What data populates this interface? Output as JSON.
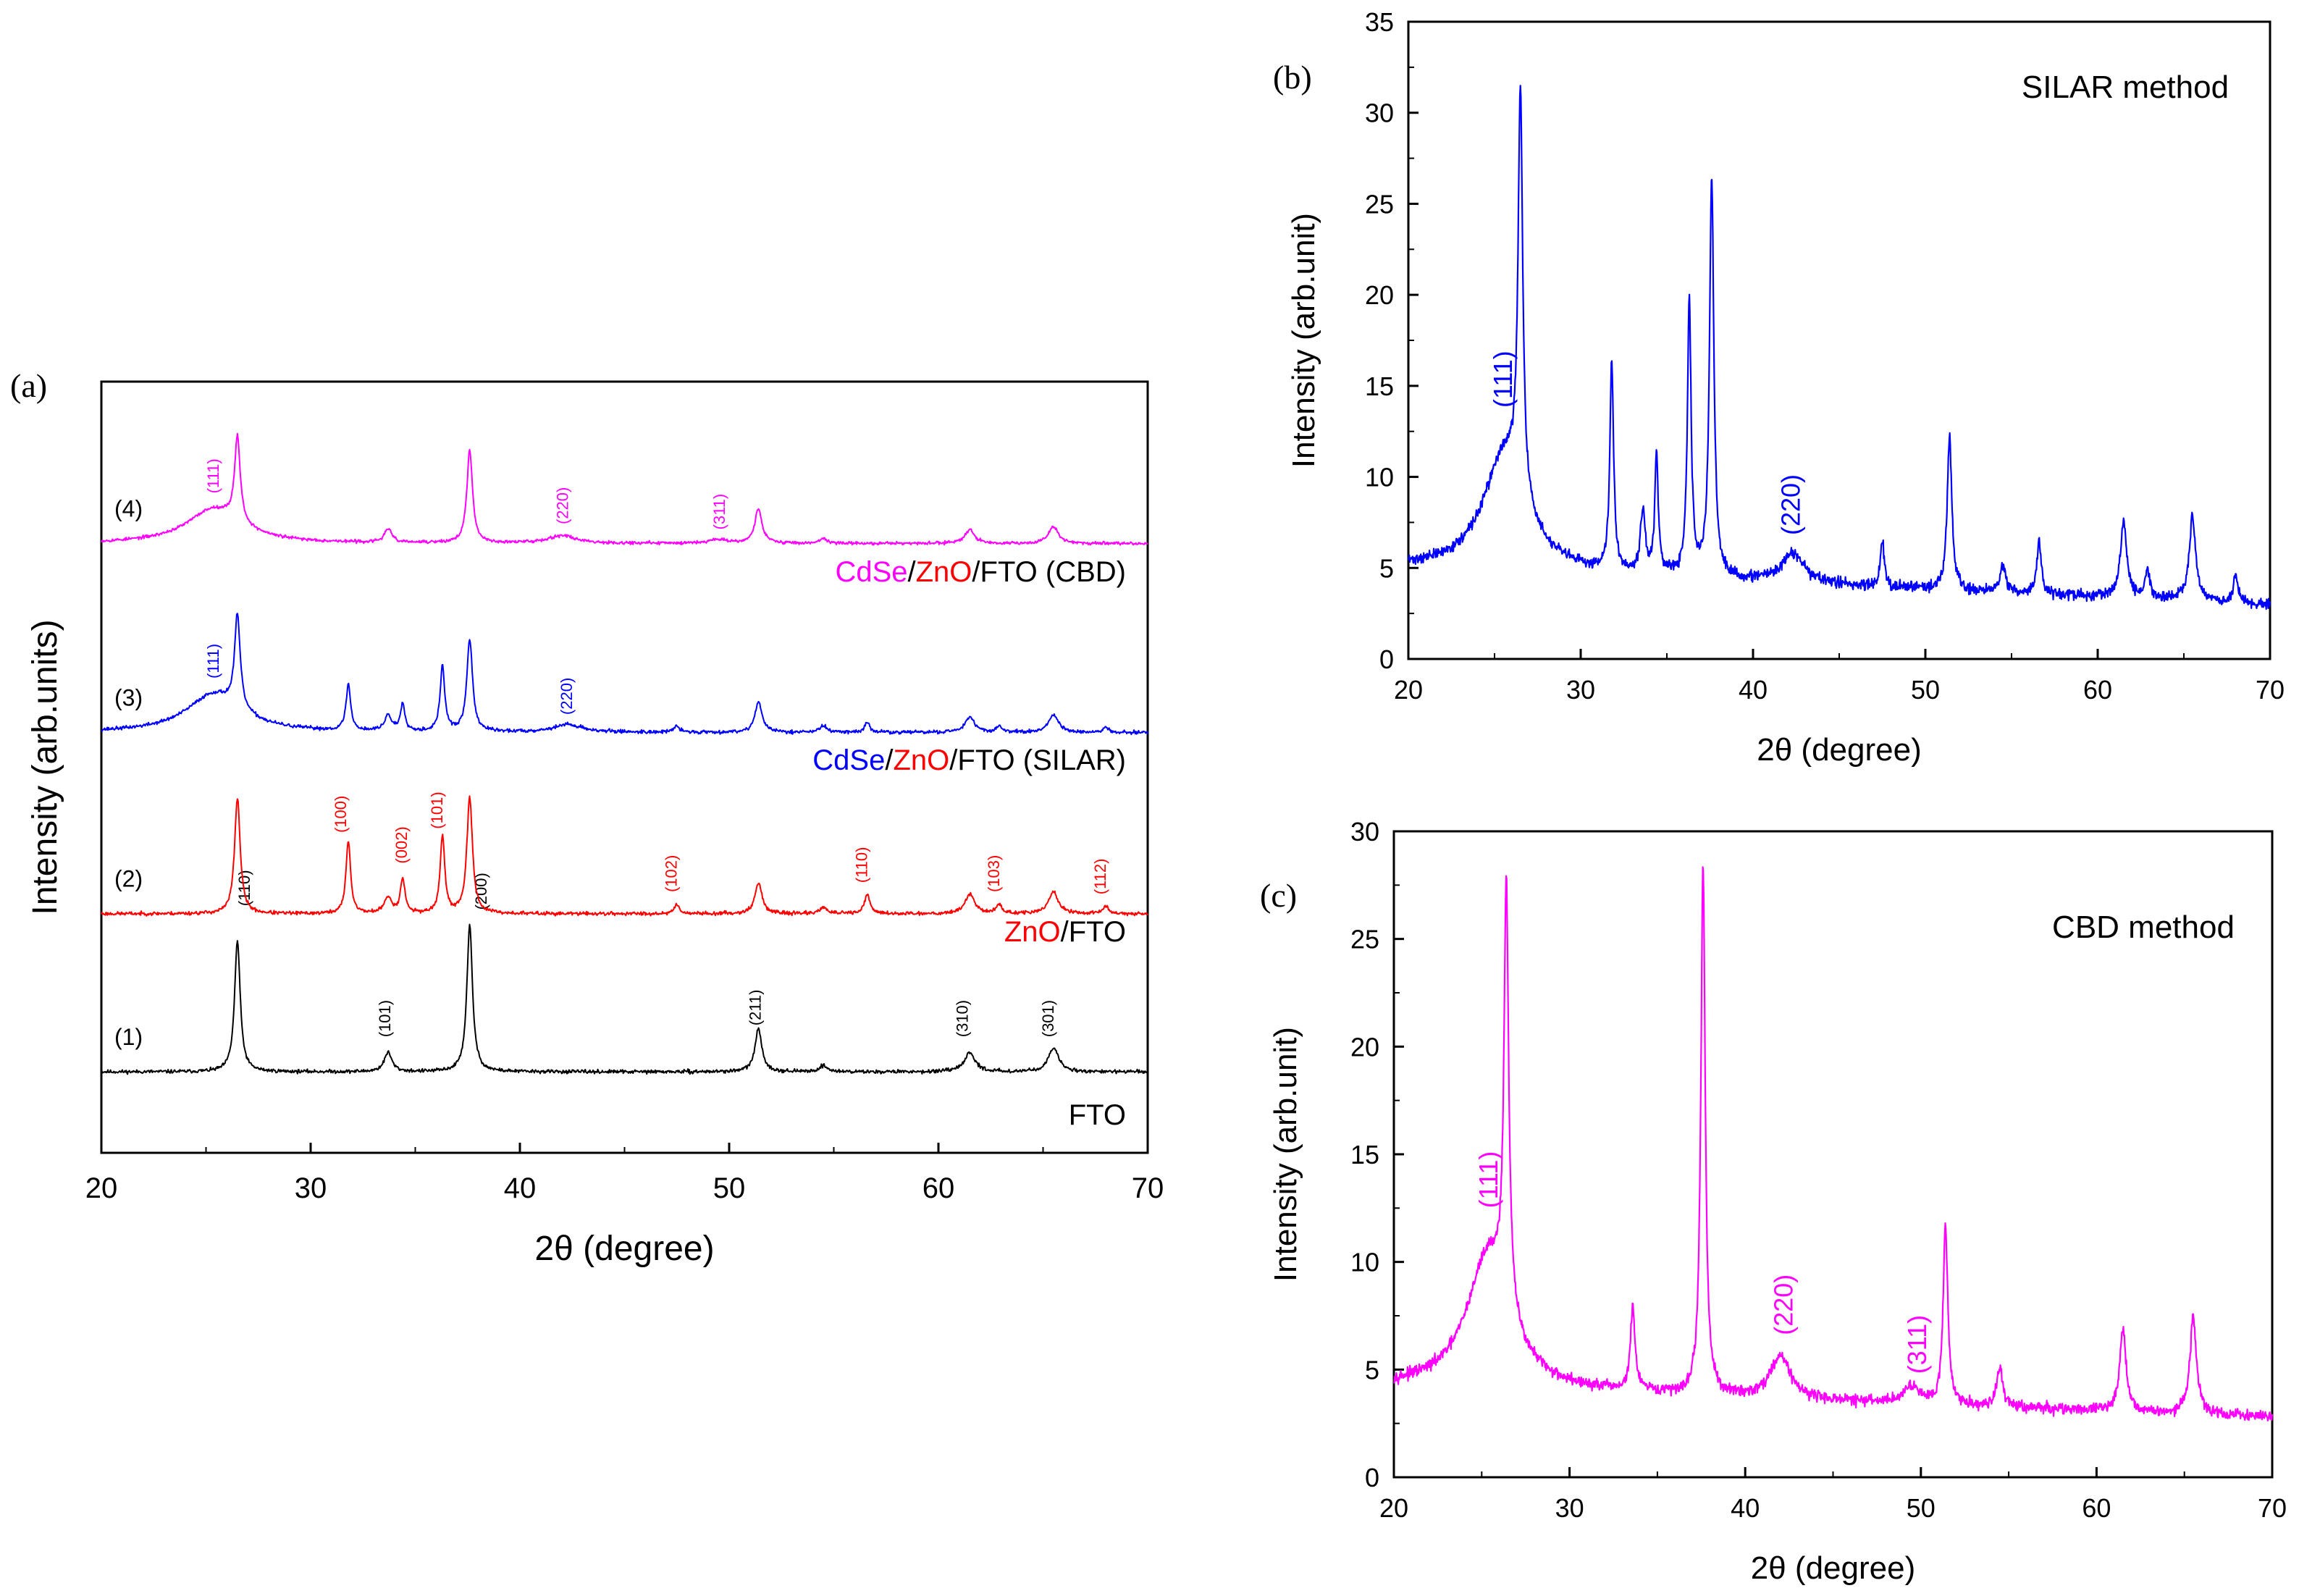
{
  "colors": {
    "fto": "#000000",
    "zno": "#ff0000",
    "silar": "#0000ff",
    "cbd": "#ff00ff",
    "axis": "#000000"
  },
  "chart_data": [
    {
      "id": "a",
      "panel_label": "(a)",
      "type": "line",
      "title": "",
      "xlabel": "2θ (degree)",
      "ylabel": "Intensity (arb.units)",
      "xlim": [
        20,
        70
      ],
      "x_ticks": [
        20,
        30,
        40,
        50,
        60,
        70
      ],
      "y_ticks_shown": false,
      "y_units": "normalized stacked intensity (0 = bottom axis, 1 = top axis)",
      "grid": false,
      "series": [
        {
          "id": "fto",
          "index_label": "(1)",
          "name": "FTO",
          "color_key": "fto",
          "baseline": 0.105,
          "noise": 0.0035,
          "seed": 11,
          "legend": [
            {
              "text": "FTO",
              "color_key": "fto"
            }
          ],
          "peaks": [
            {
              "x": 26.5,
              "h": 0.17,
              "w": 0.16,
              "label": "(110)",
              "label_x": 27.1,
              "label_base": 0.32
            },
            {
              "x": 33.7,
              "h": 0.025,
              "w": 0.22,
              "label": "(101)",
              "label_x": 33.8,
              "label_base": 0.15
            },
            {
              "x": 37.6,
              "h": 0.19,
              "w": 0.16,
              "label": "(200)",
              "label_x": 38.4,
              "label_base": 0.315
            },
            {
              "x": 51.4,
              "h": 0.055,
              "w": 0.2,
              "label": "(211)",
              "label_x": 51.5,
              "label_base": 0.165
            },
            {
              "x": 54.5,
              "h": 0.008,
              "w": 0.22
            },
            {
              "x": 61.5,
              "h": 0.025,
              "w": 0.3,
              "label": "(310)",
              "label_x": 61.4,
              "label_base": 0.15
            },
            {
              "x": 65.5,
              "h": 0.03,
              "w": 0.3,
              "label": "(301)",
              "label_x": 65.5,
              "label_base": 0.15
            }
          ]
        },
        {
          "id": "zno",
          "index_label": "(2)",
          "name": "ZnO/FTO",
          "color_key": "zno",
          "baseline": 0.31,
          "noise": 0.0035,
          "seed": 23,
          "legend": [
            {
              "text": "ZnO",
              "color_key": "zno"
            },
            {
              "text": "/FTO",
              "color_key": "fto"
            }
          ],
          "peaks": [
            {
              "x": 26.5,
              "h": 0.15,
              "w": 0.16
            },
            {
              "x": 31.8,
              "h": 0.095,
              "w": 0.13,
              "label": "(100)",
              "label_x": 31.7,
              "label_base": 0.415
            },
            {
              "x": 33.7,
              "h": 0.02,
              "w": 0.22
            },
            {
              "x": 34.4,
              "h": 0.045,
              "w": 0.13,
              "label": "(002)",
              "label_x": 34.6,
              "label_base": 0.375
            },
            {
              "x": 36.3,
              "h": 0.1,
              "w": 0.13,
              "label": "(101)",
              "label_x": 36.3,
              "label_base": 0.42
            },
            {
              "x": 37.6,
              "h": 0.15,
              "w": 0.16
            },
            {
              "x": 47.5,
              "h": 0.012,
              "w": 0.15,
              "label": "(102)",
              "label_x": 47.5,
              "label_base": 0.338
            },
            {
              "x": 51.4,
              "h": 0.04,
              "w": 0.2
            },
            {
              "x": 54.5,
              "h": 0.008,
              "w": 0.22
            },
            {
              "x": 56.6,
              "h": 0.025,
              "w": 0.15,
              "label": "(110)",
              "label_x": 56.6,
              "label_base": 0.35
            },
            {
              "x": 61.5,
              "h": 0.025,
              "w": 0.28
            },
            {
              "x": 62.9,
              "h": 0.012,
              "w": 0.15,
              "label": "(103)",
              "label_x": 62.9,
              "label_base": 0.338
            },
            {
              "x": 65.5,
              "h": 0.028,
              "w": 0.28
            },
            {
              "x": 68.0,
              "h": 0.01,
              "w": 0.15,
              "label": "(112)",
              "label_x": 68.0,
              "label_base": 0.335
            }
          ]
        },
        {
          "id": "silar",
          "index_label": "(3)",
          "name": "CdSe/ZnO/FTO (SILAR)",
          "color_key": "silar",
          "baseline": 0.545,
          "noise": 0.0035,
          "seed": 37,
          "legend": [
            {
              "text": "CdSe",
              "color_key": "silar"
            },
            {
              "text": "/",
              "color_key": "fto"
            },
            {
              "text": "ZnO",
              "color_key": "zno"
            },
            {
              "text": "/FTO (SILAR)",
              "color_key": "fto"
            }
          ],
          "peaks": [
            {
              "x": 25.4,
              "h": 0.05,
              "w": 1.6,
              "label": "(111)",
              "label_x": 25.6,
              "label_base": 0.615
            },
            {
              "x": 26.5,
              "h": 0.12,
              "w": 0.16
            },
            {
              "x": 31.8,
              "h": 0.06,
              "w": 0.13
            },
            {
              "x": 33.7,
              "h": 0.02,
              "w": 0.2
            },
            {
              "x": 34.4,
              "h": 0.035,
              "w": 0.13
            },
            {
              "x": 36.3,
              "h": 0.085,
              "w": 0.13
            },
            {
              "x": 37.6,
              "h": 0.12,
              "w": 0.16
            },
            {
              "x": 42.3,
              "h": 0.01,
              "w": 0.8,
              "label": "(220)",
              "label_x": 42.5,
              "label_base": 0.568
            },
            {
              "x": 47.5,
              "h": 0.008,
              "w": 0.15
            },
            {
              "x": 51.4,
              "h": 0.04,
              "w": 0.2
            },
            {
              "x": 54.5,
              "h": 0.008,
              "w": 0.22
            },
            {
              "x": 56.6,
              "h": 0.012,
              "w": 0.15
            },
            {
              "x": 61.5,
              "h": 0.02,
              "w": 0.28
            },
            {
              "x": 62.9,
              "h": 0.008,
              "w": 0.15
            },
            {
              "x": 65.5,
              "h": 0.022,
              "w": 0.28
            },
            {
              "x": 68.0,
              "h": 0.006,
              "w": 0.15
            }
          ]
        },
        {
          "id": "cbd",
          "index_label": "(4)",
          "name": "CdSe/ZnO/FTO (CBD)",
          "color_key": "cbd",
          "baseline": 0.79,
          "noise": 0.003,
          "seed": 53,
          "legend": [
            {
              "text": "CdSe",
              "color_key": "cbd"
            },
            {
              "text": "/",
              "color_key": "fto"
            },
            {
              "text": "ZnO",
              "color_key": "zno"
            },
            {
              "text": "/FTO (CBD)",
              "color_key": "fto"
            }
          ],
          "peaks": [
            {
              "x": 25.4,
              "h": 0.045,
              "w": 1.6,
              "label": "(111)",
              "label_x": 25.6,
              "label_base": 0.855
            },
            {
              "x": 26.5,
              "h": 0.11,
              "w": 0.16
            },
            {
              "x": 33.7,
              "h": 0.018,
              "w": 0.2
            },
            {
              "x": 37.6,
              "h": 0.12,
              "w": 0.16
            },
            {
              "x": 42.0,
              "h": 0.01,
              "w": 0.8,
              "label": "(220)",
              "label_x": 42.3,
              "label_base": 0.815
            },
            {
              "x": 49.5,
              "h": 0.005,
              "w": 0.6,
              "label": "(311)",
              "label_x": 49.8,
              "label_base": 0.808
            },
            {
              "x": 51.4,
              "h": 0.045,
              "w": 0.2
            },
            {
              "x": 54.5,
              "h": 0.006,
              "w": 0.22
            },
            {
              "x": 61.5,
              "h": 0.018,
              "w": 0.28
            },
            {
              "x": 65.5,
              "h": 0.022,
              "w": 0.28
            }
          ]
        }
      ]
    },
    {
      "id": "b",
      "panel_label": "(b)",
      "type": "line",
      "title": "SILAR method",
      "xlabel": "2θ (degree)",
      "ylabel": "Intensity (arb.unit)",
      "xlim": [
        20,
        70
      ],
      "ylim": [
        0,
        35
      ],
      "x_ticks": [
        20,
        30,
        40,
        50,
        60,
        70
      ],
      "y_ticks": [
        0,
        5,
        10,
        15,
        20,
        25,
        30,
        35
      ],
      "grid": false,
      "series": [
        {
          "id": "silar-pattern",
          "name": "CdSe/ZnO/FTO (SILAR)",
          "color_key": "silar",
          "baseline": 5.0,
          "decay": 2.0,
          "noise": 0.45,
          "seed": 71,
          "peaks": [
            {
              "x": 25.6,
              "h": 6.5,
              "w": 1.5,
              "label": "(111)",
              "label_x": 25.5,
              "label_y": 13.8
            },
            {
              "x": 26.5,
              "h": 22.0,
              "w": 0.16
            },
            {
              "x": 31.8,
              "h": 11.5,
              "w": 0.13
            },
            {
              "x": 33.6,
              "h": 3.5,
              "w": 0.16
            },
            {
              "x": 34.4,
              "h": 6.5,
              "w": 0.12
            },
            {
              "x": 36.3,
              "h": 15.0,
              "w": 0.13
            },
            {
              "x": 37.6,
              "h": 22.0,
              "w": 0.15
            },
            {
              "x": 42.3,
              "h": 1.6,
              "w": 0.8,
              "label": "(220)",
              "label_x": 42.2,
              "label_y": 6.8
            },
            {
              "x": 47.5,
              "h": 2.5,
              "w": 0.14
            },
            {
              "x": 51.4,
              "h": 8.5,
              "w": 0.16
            },
            {
              "x": 54.5,
              "h": 1.5,
              "w": 0.2
            },
            {
              "x": 56.6,
              "h": 3.0,
              "w": 0.15
            },
            {
              "x": 61.5,
              "h": 4.2,
              "w": 0.22
            },
            {
              "x": 62.9,
              "h": 1.5,
              "w": 0.15
            },
            {
              "x": 65.5,
              "h": 4.6,
              "w": 0.22
            },
            {
              "x": 68.0,
              "h": 1.5,
              "w": 0.15
            }
          ]
        }
      ]
    },
    {
      "id": "c",
      "panel_label": "(c)",
      "type": "line",
      "title": "CBD method",
      "xlabel": "2θ (degree)",
      "ylabel": "Intensity (arb.unit)",
      "xlim": [
        20,
        70
      ],
      "ylim": [
        0,
        30
      ],
      "x_ticks": [
        20,
        30,
        40,
        50,
        60,
        70
      ],
      "y_ticks": [
        0,
        5,
        10,
        15,
        20,
        25,
        30
      ],
      "grid": false,
      "series": [
        {
          "id": "cbd-pattern",
          "name": "CdSe/ZnO/FTO (CBD)",
          "color_key": "cbd",
          "baseline": 4.2,
          "decay": 1.4,
          "noise": 0.4,
          "seed": 97,
          "peaks": [
            {
              "x": 25.4,
              "h": 6.3,
              "w": 1.5,
              "label": "(111)",
              "label_x": 25.4,
              "label_y": 12.5
            },
            {
              "x": 26.4,
              "h": 19.5,
              "w": 0.16
            },
            {
              "x": 33.6,
              "h": 3.8,
              "w": 0.16
            },
            {
              "x": 37.6,
              "h": 24.5,
              "w": 0.15
            },
            {
              "x": 42.0,
              "h": 2.0,
              "w": 0.7,
              "label": "(220)",
              "label_x": 42.2,
              "label_y": 6.6
            },
            {
              "x": 49.5,
              "h": 0.8,
              "w": 0.6,
              "label": "(311)",
              "label_x": 49.8,
              "label_y": 4.8
            },
            {
              "x": 51.4,
              "h": 8.2,
              "w": 0.16
            },
            {
              "x": 54.5,
              "h": 1.8,
              "w": 0.2
            },
            {
              "x": 61.5,
              "h": 3.8,
              "w": 0.22
            },
            {
              "x": 65.5,
              "h": 4.5,
              "w": 0.22
            }
          ]
        }
      ]
    }
  ]
}
